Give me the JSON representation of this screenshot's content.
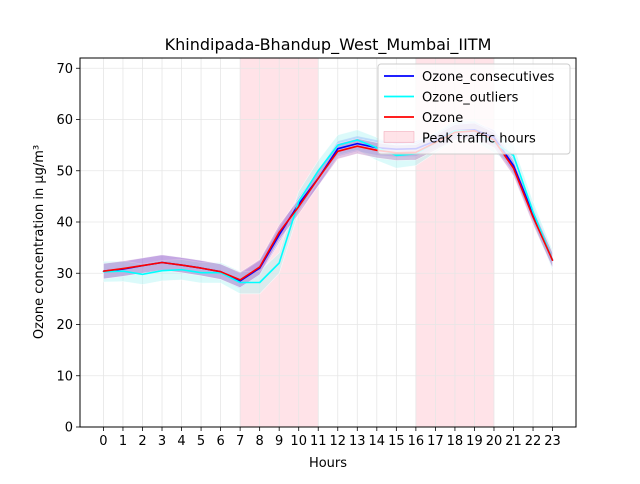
{
  "chart_data": {
    "type": "line",
    "title": "Khindipada-Bhandup_West_Mumbai_IITM",
    "xlabel": "Hours",
    "ylabel": "Ozone concentration in µg/m³",
    "x": [
      0,
      1,
      2,
      3,
      4,
      5,
      6,
      7,
      8,
      9,
      10,
      11,
      12,
      13,
      14,
      15,
      16,
      17,
      18,
      19,
      20,
      21,
      22,
      23
    ],
    "xticks": [
      "0",
      "1",
      "2",
      "3",
      "4",
      "5",
      "6",
      "7",
      "8",
      "9",
      "10",
      "11",
      "12",
      "13",
      "14",
      "15",
      "16",
      "17",
      "18",
      "19",
      "20",
      "21",
      "22",
      "23"
    ],
    "xlim": [
      -1.2,
      24.2
    ],
    "ylim": [
      0,
      72
    ],
    "yticks": [
      0,
      10,
      20,
      30,
      40,
      50,
      60,
      70
    ],
    "grid": true,
    "legend_position": "top-right",
    "shaded_regions": [
      {
        "name": "Peak traffic hours",
        "from": 7,
        "to": 11,
        "color": "#ffc0cb"
      },
      {
        "from": 16,
        "to": 20,
        "color": "#ffc0cb"
      }
    ],
    "series": [
      {
        "name": "Ozone_consecutives",
        "color": "#0000ff",
        "band_color": "#8080ff",
        "values": [
          30.4,
          30.8,
          31.5,
          32.1,
          31.6,
          31.0,
          30.3,
          28.5,
          31.0,
          37.5,
          43.5,
          48.5,
          54.3,
          55.3,
          54.5,
          54.2,
          54.3,
          55.8,
          57.8,
          58.0,
          56.5,
          51.0,
          41.5,
          32.5
        ],
        "lower": [
          28.9,
          29.3,
          30.0,
          30.6,
          30.1,
          29.5,
          28.8,
          27.0,
          29.5,
          36.0,
          42.0,
          47.0,
          52.8,
          53.8,
          53.0,
          52.7,
          52.8,
          54.3,
          56.3,
          56.5,
          55.0,
          49.5,
          40.0,
          31.0
        ],
        "upper": [
          31.9,
          32.3,
          33.0,
          33.6,
          33.1,
          32.5,
          31.8,
          30.0,
          32.5,
          39.0,
          45.0,
          50.0,
          55.8,
          56.8,
          56.0,
          55.7,
          55.8,
          57.3,
          59.3,
          59.5,
          58.0,
          52.5,
          43.0,
          34.0
        ]
      },
      {
        "name": "Ozone_outliers",
        "color": "#00ffff",
        "band_color": "#b0f4f4",
        "values": [
          30.3,
          30.4,
          29.8,
          30.5,
          30.7,
          30.1,
          30.1,
          28.2,
          28.2,
          32.0,
          44.0,
          50.0,
          55.0,
          56.0,
          54.5,
          53.0,
          53.3,
          55.5,
          57.8,
          57.8,
          55.5,
          53.0,
          42.0,
          32.5
        ],
        "lower": [
          28.3,
          28.4,
          27.8,
          28.5,
          28.7,
          28.1,
          28.1,
          26.0,
          26.0,
          30.0,
          42.0,
          48.0,
          53.0,
          54.0,
          52.0,
          50.5,
          51.0,
          53.5,
          55.8,
          55.8,
          53.5,
          51.0,
          40.0,
          30.5
        ],
        "upper": [
          32.3,
          32.4,
          31.8,
          32.5,
          32.7,
          32.1,
          32.1,
          30.4,
          30.4,
          34.0,
          46.0,
          52.0,
          57.0,
          58.0,
          56.5,
          55.0,
          55.5,
          57.5,
          59.8,
          59.8,
          57.5,
          55.0,
          44.0,
          34.5
        ]
      },
      {
        "name": "Ozone",
        "color": "#ff0000",
        "band_color": "#c080c0",
        "values": [
          30.4,
          30.9,
          31.5,
          32.1,
          31.6,
          31.0,
          30.3,
          28.7,
          31.2,
          38.0,
          43.0,
          48.5,
          53.8,
          54.8,
          54.0,
          53.5,
          53.6,
          55.5,
          57.5,
          57.8,
          56.0,
          50.5,
          41.0,
          32.5
        ],
        "lower": [
          28.9,
          29.4,
          30.0,
          30.6,
          30.1,
          29.5,
          28.8,
          27.2,
          29.7,
          36.5,
          41.5,
          47.0,
          52.3,
          53.3,
          52.5,
          52.0,
          52.1,
          54.0,
          56.0,
          56.3,
          54.5,
          49.0,
          39.5,
          31.0
        ],
        "upper": [
          31.9,
          32.4,
          33.0,
          33.6,
          33.1,
          32.5,
          31.8,
          30.2,
          32.7,
          39.5,
          44.5,
          50.0,
          55.3,
          56.3,
          55.5,
          55.0,
          55.1,
          57.0,
          59.0,
          59.3,
          57.5,
          52.0,
          42.5,
          34.0
        ]
      }
    ],
    "legend": [
      "Ozone_consecutives",
      "Ozone_outliers",
      "Ozone",
      "Peak traffic hours"
    ]
  }
}
